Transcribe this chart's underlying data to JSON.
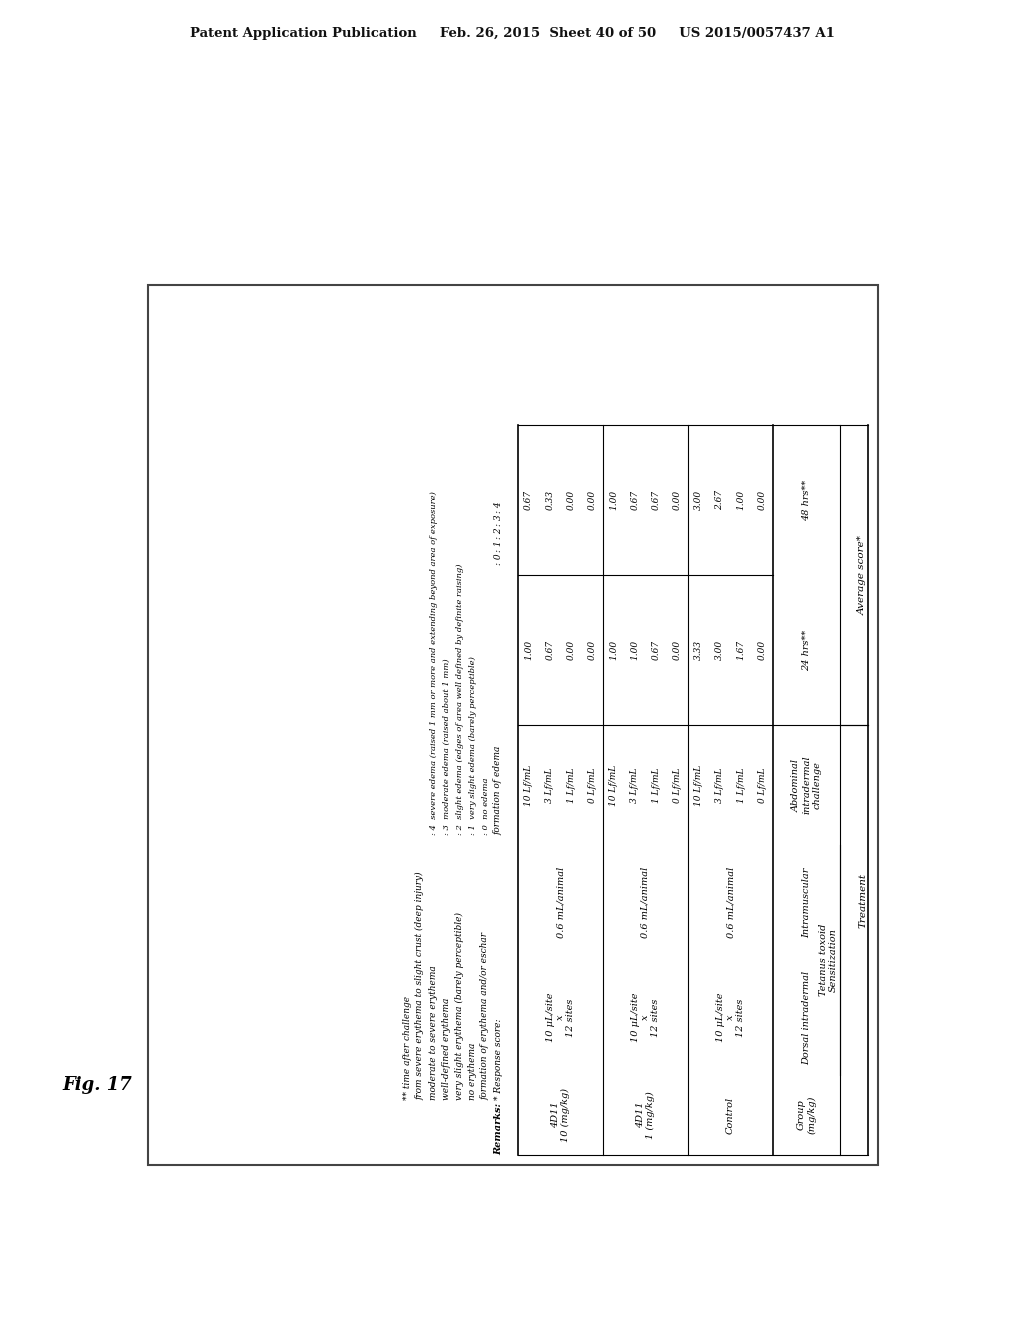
{
  "header_text": "Patent Application Publication     Feb. 26, 2015  Sheet 40 of 50     US 2015/0057437 A1",
  "fig_label": "Fig. 17",
  "background_color": "#ffffff",
  "table": {
    "groups": [
      {
        "name": "Control",
        "dorsal": "10 μL/site\nx\n12 sites",
        "intramuscular": "0.6 mL/animal",
        "abdominal_doses": [
          "0 Lf/mL",
          "1 Lf/mL",
          "3 Lf/mL",
          "10 Lf/mL"
        ],
        "score_24": [
          "0.00",
          "1.67",
          "3.00",
          "3.33"
        ],
        "score_48": [
          "0.00",
          "1.00",
          "2.67",
          "3.00"
        ]
      },
      {
        "name": "4D11\n1 (mg/kg)",
        "dorsal": "10 μL/site\nx\n12 sites",
        "intramuscular": "0.6 mL/animal",
        "abdominal_doses": [
          "0 Lf/mL",
          "1 Lf/mL",
          "3 Lf/mL",
          "10 Lf/mL"
        ],
        "score_24": [
          "0.00",
          "0.67",
          "1.00",
          "1.00"
        ],
        "score_48": [
          "0.00",
          "0.67",
          "0.67",
          "1.00"
        ]
      },
      {
        "name": "4D11\n10 (mg/kg)",
        "dorsal": "10 μL/site\nx\n12 sites",
        "intramuscular": "0.6 mL/animal",
        "abdominal_doses": [
          "0 Lf/mL",
          "1 Lf/mL",
          "3 Lf/mL",
          "10 Lf/mL"
        ],
        "score_24": [
          "0.00",
          "0.00",
          "0.67",
          "1.00"
        ],
        "score_48": [
          "0.00",
          "0.00",
          "0.33",
          "0.67"
        ]
      }
    ],
    "remarks_left": [
      "* Response score:",
      "formation of erythema and/or eschar",
      "no erythema",
      "very slight erythema (barely perceptible)",
      "well-defined erythema",
      "moderate to severe erythema",
      "from severe erythema to slight crust (deep injury)",
      "** time after challenge"
    ],
    "edema_header": "formation of edema",
    "edema_items": [
      "no edema",
      "very slight edema (barely perceptible)",
      "slight edema (edges of area well defined by definite raising)",
      "moderate edema (raised about 1 mm)",
      "severe edema (raised 1 mm or more and extending beyond area of exposure)"
    ],
    "edema_bullets": [
      ": 0",
      ": 1",
      ": 2",
      ": 3",
      ": 4"
    ],
    "right_bullets": [
      ": 0",
      ": 1",
      ": 2",
      ": 3",
      ": 4"
    ]
  }
}
